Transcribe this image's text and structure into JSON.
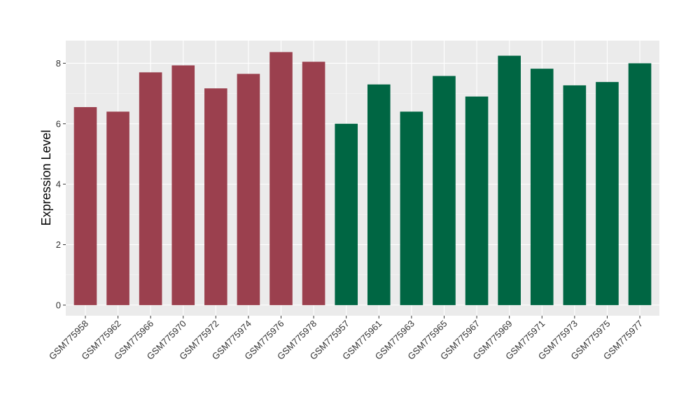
{
  "chart_data": {
    "type": "bar",
    "title": "",
    "xlabel": "",
    "ylabel": "Expression Level",
    "ylim": [
      -0.35,
      8.75
    ],
    "yticks": [
      0,
      2,
      4,
      6,
      8
    ],
    "ytick_labels": [
      "0",
      "2",
      "4",
      "6",
      "8"
    ],
    "grid": true,
    "legend": "none",
    "colors": {
      "group1": "#9B404E",
      "group2": "#006643",
      "panel_bg": "#EBEBEB",
      "grid": "#FFFFFF"
    },
    "categories": [
      "GSM775958",
      "GSM775962",
      "GSM775966",
      "GSM775970",
      "GSM775972",
      "GSM775974",
      "GSM775976",
      "GSM775978",
      "GSM775957",
      "GSM775961",
      "GSM775963",
      "GSM775965",
      "GSM775967",
      "GSM775969",
      "GSM775971",
      "GSM775973",
      "GSM775975",
      "GSM775977"
    ],
    "values": [
      6.55,
      6.4,
      7.7,
      7.93,
      7.17,
      7.65,
      8.37,
      8.05,
      6.0,
      7.3,
      6.4,
      7.58,
      6.9,
      8.25,
      7.82,
      7.27,
      7.38,
      8.0
    ],
    "groups": [
      1,
      1,
      1,
      1,
      1,
      1,
      1,
      1,
      2,
      2,
      2,
      2,
      2,
      2,
      2,
      2,
      2,
      2
    ]
  }
}
